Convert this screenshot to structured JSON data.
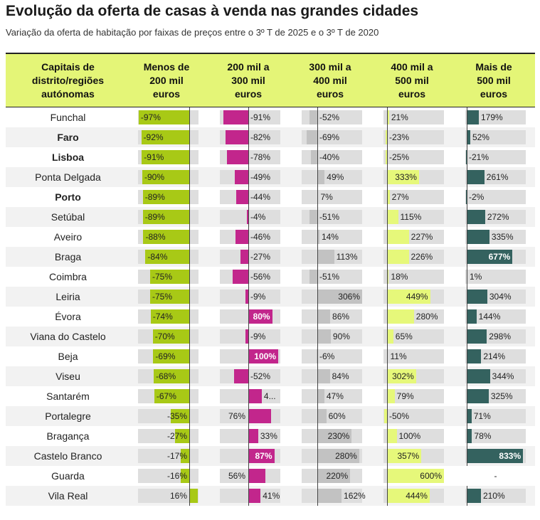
{
  "title": "Evolução da oferta de casas à venda nas grandes cidades",
  "subtitle": "Variação da oferta de habitação por faixas de preços entre o 3º T de 2025 e o 3º T de 2020",
  "colors": {
    "header_bg": "#e4f577",
    "c1": "#a8c916",
    "c2": "#c2268c",
    "c3": "#c2c2c2",
    "c4": "#e6f87a",
    "c5": "#34625f",
    "track": "#dedede"
  },
  "chart_data": {
    "type": "table",
    "title": "Evolução da oferta de casas à venda nas grandes cidades",
    "subtitle": "Variação da oferta de habitação por faixas de preços entre o 3º T de 2025 e o 3º T de 2020",
    "row_header": "Capitais de distrito/regiões autónomas",
    "columns": [
      "Menos de 200 mil euros",
      "200 mil a 300 mil euros",
      "300 mil a 400 mil euros",
      "400 mil a 500 mil euros",
      "Mais de 500 mil euros"
    ],
    "column_lines": [
      [
        "Capitais de",
        "distrito/regiões",
        "autónomas"
      ],
      [
        "Menos de",
        "200 mil",
        "euros"
      ],
      [
        "200 mil a",
        "300 mil",
        "euros"
      ],
      [
        "300 mil a",
        "400 mil",
        "euros"
      ],
      [
        "400 mil a",
        "500 mil",
        "euros"
      ],
      [
        "Mais de",
        "500 mil",
        "euros"
      ]
    ],
    "rows": [
      {
        "name": "Funchal",
        "bold": false,
        "values": [
          -97,
          -91,
          -52,
          21,
          179
        ],
        "labels": [
          "-97%",
          "-91%",
          "-52%",
          "21%",
          "179%"
        ]
      },
      {
        "name": "Faro",
        "bold": true,
        "values": [
          -92,
          -82,
          -69,
          -23,
          52
        ],
        "labels": [
          "-92%",
          "-82%",
          "-69%",
          "-23%",
          "52%"
        ]
      },
      {
        "name": "Lisboa",
        "bold": true,
        "values": [
          -91,
          -78,
          -40,
          -25,
          -21
        ],
        "labels": [
          "-91%",
          "-78%",
          "-40%",
          "-25%",
          "-21%"
        ]
      },
      {
        "name": "Ponta Delgada",
        "bold": false,
        "values": [
          -90,
          -49,
          49,
          333,
          261
        ],
        "labels": [
          "-90%",
          "-49%",
          "49%",
          "333%",
          "261%"
        ]
      },
      {
        "name": "Porto",
        "bold": true,
        "values": [
          -89,
          -44,
          7,
          27,
          -2
        ],
        "labels": [
          "-89%",
          "-44%",
          "7%",
          "27%",
          "-2%"
        ]
      },
      {
        "name": "Setúbal",
        "bold": false,
        "values": [
          -89,
          -4,
          -51,
          115,
          272
        ],
        "labels": [
          "-89%",
          "-4%",
          "-51%",
          "115%",
          "272%"
        ]
      },
      {
        "name": "Aveiro",
        "bold": false,
        "values": [
          -88,
          -46,
          14,
          227,
          335
        ],
        "labels": [
          "-88%",
          "-46%",
          "14%",
          "227%",
          "335%"
        ]
      },
      {
        "name": "Braga",
        "bold": false,
        "values": [
          -84,
          -27,
          113,
          226,
          677
        ],
        "labels": [
          "-84%",
          "-27%",
          "113%",
          "226%",
          "677%"
        ]
      },
      {
        "name": "Coimbra",
        "bold": false,
        "values": [
          -75,
          -56,
          -51,
          18,
          1
        ],
        "labels": [
          "-75%",
          "-56%",
          "-51%",
          "18%",
          "1%"
        ]
      },
      {
        "name": "Leiria",
        "bold": false,
        "values": [
          -75,
          -9,
          306,
          449,
          304
        ],
        "labels": [
          "-75%",
          "-9%",
          "306%",
          "449%",
          "304%"
        ]
      },
      {
        "name": "Évora",
        "bold": false,
        "values": [
          -74,
          80,
          86,
          280,
          144
        ],
        "labels": [
          "-74%",
          "80%",
          "86%",
          "280%",
          "144%"
        ]
      },
      {
        "name": "Viana do Castelo",
        "bold": false,
        "values": [
          -70,
          -9,
          90,
          65,
          298
        ],
        "labels": [
          "-70%",
          "-9%",
          "90%",
          "65%",
          "298%"
        ]
      },
      {
        "name": "Beja",
        "bold": false,
        "values": [
          -69,
          100,
          -6,
          11,
          214
        ],
        "labels": [
          "-69%",
          "100%",
          "-6%",
          "11%",
          "214%"
        ]
      },
      {
        "name": "Viseu",
        "bold": false,
        "values": [
          -68,
          -52,
          84,
          302,
          344
        ],
        "labels": [
          "-68%",
          "-52%",
          "84%",
          "302%",
          "344%"
        ]
      },
      {
        "name": "Santarém",
        "bold": false,
        "values": [
          -67,
          45,
          47,
          79,
          325
        ],
        "labels": [
          "-67%",
          "4...",
          "47%",
          "79%",
          "325%"
        ]
      },
      {
        "name": "Portalegre",
        "bold": false,
        "values": [
          -35,
          76,
          60,
          -50,
          71
        ],
        "labels": [
          "-35%",
          "76%",
          "60%",
          "-50%",
          "71%"
        ]
      },
      {
        "name": "Bragança",
        "bold": false,
        "values": [
          -27,
          33,
          230,
          100,
          78
        ],
        "labels": [
          "-27%",
          "33%",
          "230%",
          "100%",
          "78%"
        ]
      },
      {
        "name": "Castelo Branco",
        "bold": false,
        "values": [
          -17,
          87,
          280,
          357,
          833
        ],
        "labels": [
          "-17%",
          "87%",
          "280%",
          "357%",
          "833%"
        ]
      },
      {
        "name": "Guarda",
        "bold": false,
        "values": [
          -16,
          56,
          220,
          600,
          null
        ],
        "labels": [
          "-16%",
          "56%",
          "220%",
          "600%",
          "-"
        ]
      },
      {
        "name": "Vila Real",
        "bold": false,
        "values": [
          16,
          41,
          162,
          444,
          210
        ],
        "labels": [
          "16%",
          "41%",
          "162%",
          "444%",
          "210%"
        ]
      }
    ]
  }
}
